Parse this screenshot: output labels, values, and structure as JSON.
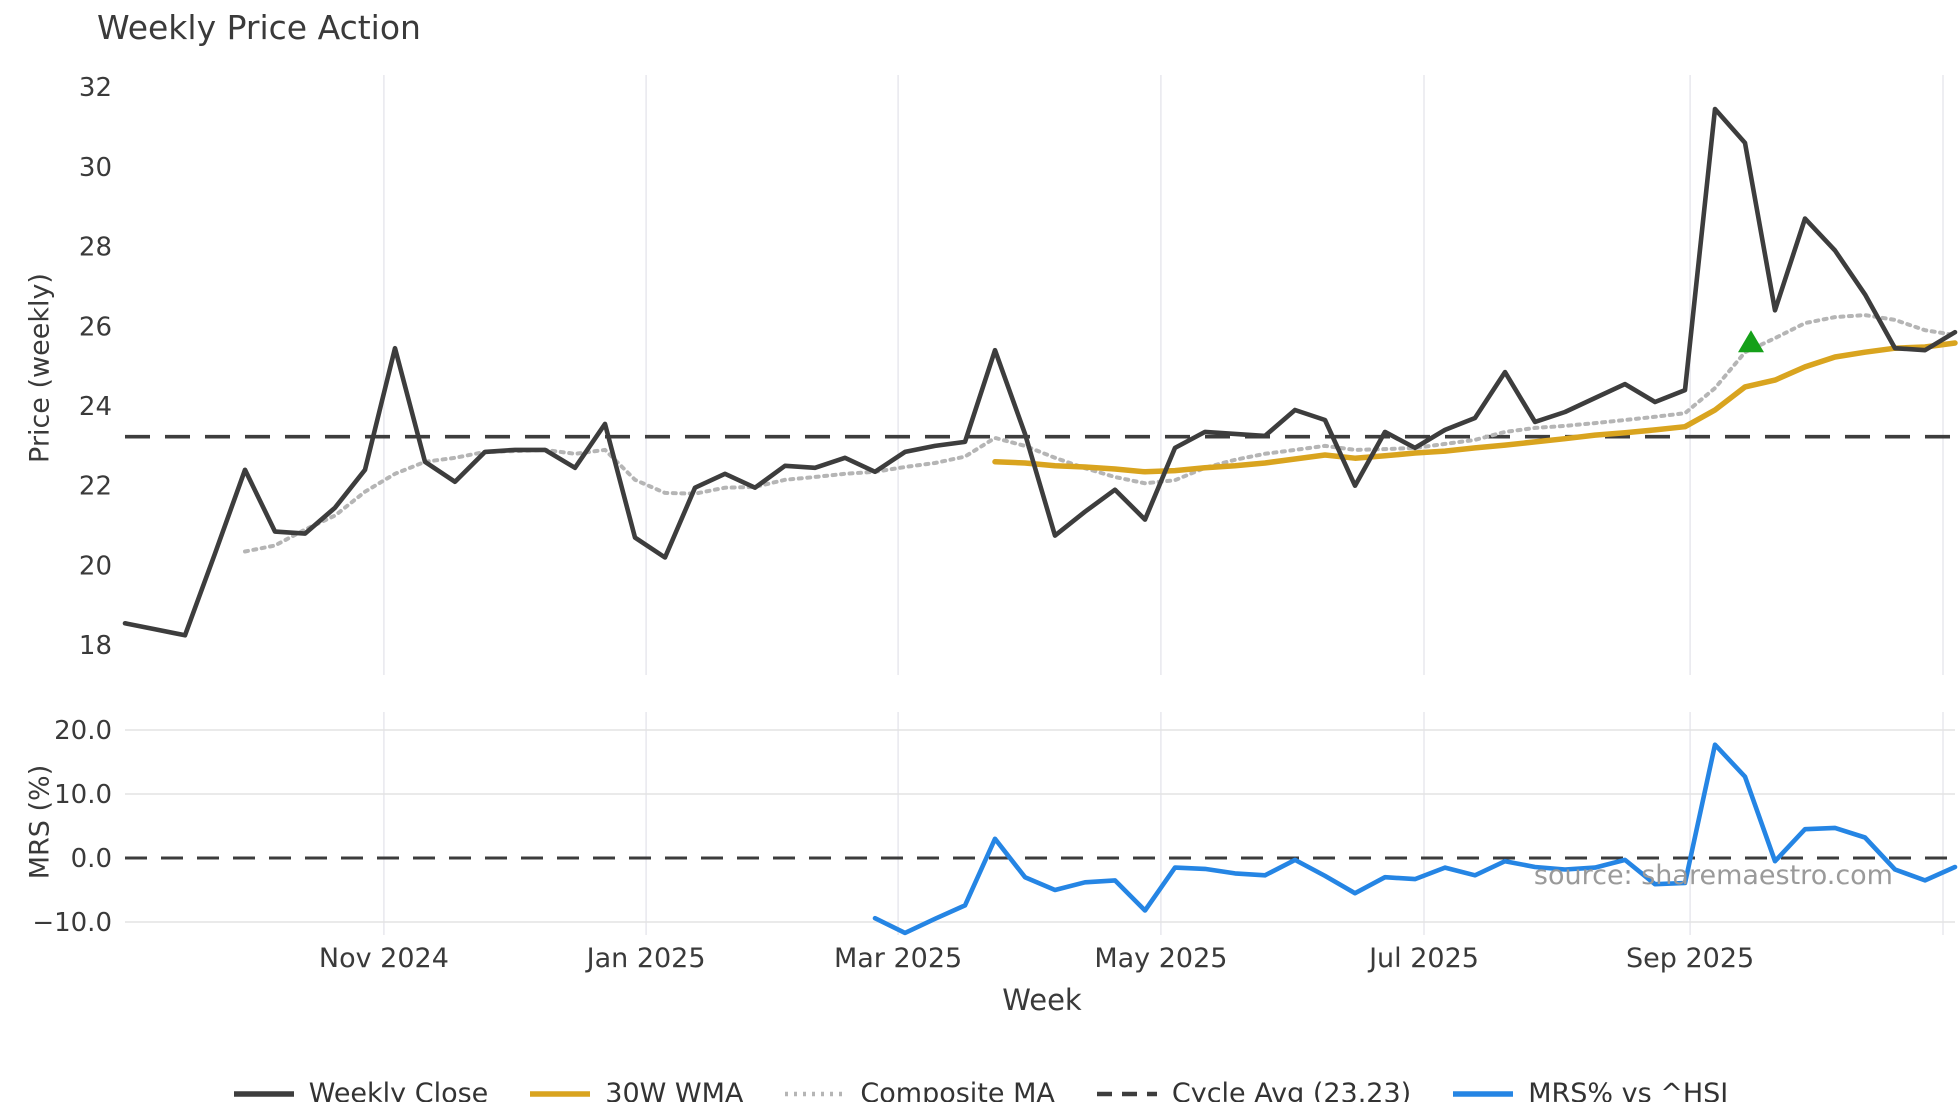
{
  "title": "Weekly Price Action",
  "axes": {
    "price_label": "Price (weekly)",
    "mrs_label": "MRS (%)",
    "x_label": "Week"
  },
  "source": {
    "text": "source: sharemaestro.com"
  },
  "colors": {
    "weekly_close": "#3d3d3d",
    "wma": "#d9a41f",
    "composite": "#b5b5b5",
    "cycle_avg": "#3d3d3d",
    "mrs": "#2585e4",
    "signal_green": "#15a019",
    "gridline": "#e9e9ef",
    "mrs_gridline": "#e3e3e3",
    "text": "#3a3a3a"
  },
  "legend": {
    "items": [
      {
        "label": "Weekly Close",
        "color": "#3d3d3d",
        "style": "solid"
      },
      {
        "label": "30W WMA",
        "color": "#d9a41f",
        "style": "solid"
      },
      {
        "label": "Composite MA",
        "color": "#b5b5b5",
        "style": "dotted"
      },
      {
        "label": "Cycle Avg (23.23)",
        "color": "#3d3d3d",
        "style": "dashed"
      },
      {
        "label": "MRS% vs ^HSI",
        "color": "#2585e4",
        "style": "solid"
      }
    ]
  },
  "chart_data": [
    {
      "type": "line",
      "panel": "price",
      "title": "Weekly Price Action",
      "xlabel": "Week",
      "ylabel": "Price (weekly)",
      "ylim": [
        17.25,
        32.3
      ],
      "y_ticks": [
        18,
        20,
        22,
        24,
        26,
        28,
        30,
        32
      ],
      "x_ticks": {
        "labels": [
          "Nov 2024",
          "Jan 2025",
          "Mar 2025",
          "May 2025",
          "Jul 2025",
          "Sep 2025"
        ],
        "week_positions": [
          8.63,
          17.37,
          25.77,
          34.53,
          43.3,
          52.17
        ],
        "extra_gridline_week": 60.6
      },
      "grid": "vertical-only",
      "cycle_avg": 23.23,
      "series": [
        {
          "name": "Composite MA",
          "style": "dotted",
          "start_week": 4,
          "values": [
            20.35,
            20.5,
            20.9,
            21.25,
            21.85,
            22.3,
            22.6,
            22.7,
            22.85,
            22.87,
            22.9,
            22.8,
            22.9,
            22.15,
            21.82,
            21.8,
            21.95,
            21.97,
            22.15,
            22.22,
            22.3,
            22.35,
            22.47,
            22.57,
            22.73,
            23.2,
            23.0,
            22.7,
            22.44,
            22.22,
            22.06,
            22.14,
            22.45,
            22.65,
            22.8,
            22.9,
            23.0,
            22.9,
            22.92,
            22.95,
            23.05,
            23.15,
            23.35,
            23.45,
            23.5,
            23.57,
            23.65,
            23.73,
            23.82,
            24.45,
            25.35,
            25.7,
            26.08,
            26.23,
            26.28,
            26.16,
            25.9,
            25.78
          ]
        },
        {
          "name": "30W WMA",
          "style": "solid",
          "start_week": 29,
          "values": [
            22.6,
            22.57,
            22.5,
            22.47,
            22.42,
            22.35,
            22.38,
            22.45,
            22.5,
            22.57,
            22.67,
            22.77,
            22.69,
            22.75,
            22.82,
            22.87,
            22.95,
            23.02,
            23.1,
            23.18,
            23.27,
            23.33,
            23.4,
            23.48,
            23.9,
            24.48,
            24.65,
            24.98,
            25.23,
            25.35,
            25.45,
            25.48,
            25.58
          ]
        },
        {
          "name": "Weekly Close",
          "style": "solid",
          "start_week": 0,
          "values": [
            18.55,
            18.4,
            18.25,
            20.3,
            22.4,
            20.85,
            20.8,
            21.45,
            22.4,
            25.45,
            22.6,
            22.1,
            22.85,
            22.9,
            22.9,
            22.45,
            23.55,
            20.7,
            20.2,
            21.95,
            22.3,
            21.95,
            22.5,
            22.45,
            22.7,
            22.35,
            22.85,
            23.0,
            23.1,
            25.4,
            23.3,
            20.75,
            21.35,
            21.9,
            21.15,
            22.95,
            23.35,
            23.3,
            23.25,
            23.9,
            23.65,
            22.0,
            23.35,
            22.95,
            23.4,
            23.7,
            24.85,
            23.6,
            23.85,
            24.2,
            24.55,
            24.1,
            24.4,
            31.45,
            30.6,
            26.4,
            28.7,
            27.9,
            26.8,
            25.45,
            25.4,
            25.85
          ]
        }
      ],
      "marker": {
        "shape": "triangle-up",
        "color": "#15a019",
        "week": 54.2,
        "value": 25.6
      }
    },
    {
      "type": "line",
      "panel": "mrs",
      "ylabel": "MRS (%)",
      "ylim": [
        -13.8,
        23.5
      ],
      "y_ticks": [
        20,
        10,
        0,
        -10
      ],
      "y_tick_labels": [
        "20.0",
        "10.0",
        "0.0",
        "−10.0"
      ],
      "grid": "both",
      "zero_line": 0,
      "series": [
        {
          "name": "MRS% vs ^HSI",
          "style": "solid",
          "start_week": 25,
          "values": [
            -9.4,
            -11.7,
            -9.5,
            -7.4,
            3.0,
            -3.0,
            -5.0,
            -3.8,
            -3.5,
            -8.2,
            -1.5,
            -1.7,
            -2.4,
            -2.7,
            -0.3,
            -2.8,
            -5.5,
            -3.0,
            -3.3,
            -1.5,
            -2.7,
            -0.5,
            -1.4,
            -1.8,
            -1.5,
            -0.3,
            -4.1,
            -3.9,
            17.7,
            12.7,
            -0.5,
            4.5,
            4.7,
            3.2,
            -1.8,
            -3.5,
            -1.4
          ]
        }
      ]
    }
  ]
}
